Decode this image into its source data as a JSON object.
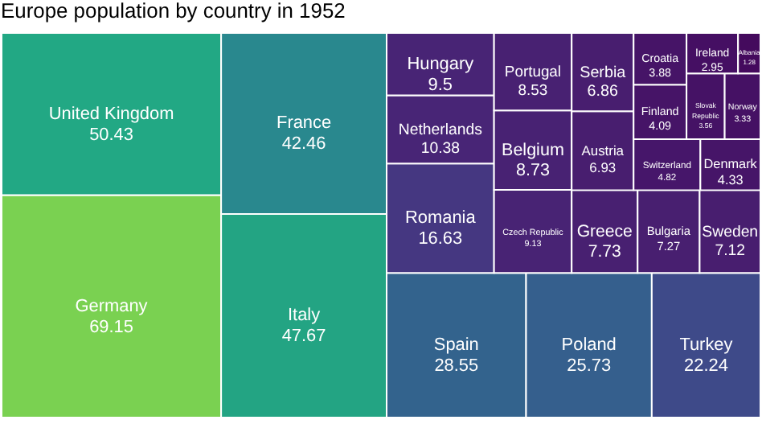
{
  "chart_data": {
    "type": "other",
    "title": "Europe population by country in 1952",
    "categories": [
      "Germany",
      "United Kingdom",
      "Italy",
      "France",
      "Spain",
      "Poland",
      "Turkey",
      "Romania",
      "Netherlands",
      "Hungary",
      "Czech Republic",
      "Belgium",
      "Portugal",
      "Greece",
      "Bulgaria",
      "Sweden",
      "Austria",
      "Serbia",
      "Switzerland",
      "Denmark",
      "Finland",
      "Croatia",
      "Slovak Republic",
      "Norway",
      "Ireland",
      "Albania"
    ],
    "values": [
      69.15,
      50.43,
      47.67,
      42.46,
      28.55,
      25.73,
      22.24,
      16.63,
      10.38,
      9.5,
      9.13,
      8.73,
      8.53,
      7.73,
      7.27,
      7.12,
      6.93,
      6.86,
      4.82,
      4.33,
      4.09,
      3.88,
      3.56,
      3.33,
      2.95,
      1.28
    ],
    "colors": [
      "#7ad151",
      "#22a884",
      "#23a483",
      "#29888e",
      "#33638d",
      "#355f8d",
      "#3e4a89",
      "#453781",
      "#482576",
      "#482475",
      "#482374",
      "#482273",
      "#482172",
      "#482071",
      "#481f70",
      "#481e6f",
      "#481e6f",
      "#481e6f",
      "#46166a",
      "#461568",
      "#461467",
      "#461467",
      "#451265",
      "#451164",
      "#450f63",
      "#440a5d"
    ],
    "data_labels": true
  }
}
